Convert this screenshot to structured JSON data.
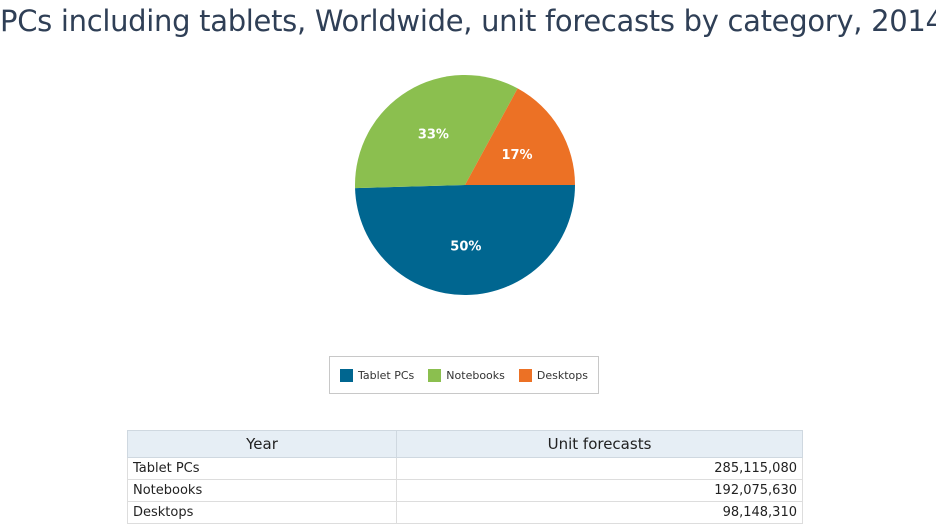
{
  "title": "PCs including tablets, Worldwide, unit forecasts by category, 2014",
  "chart_data": {
    "type": "pie",
    "title": "PCs including tablets, Worldwide, unit forecasts by category, 2014",
    "categories": [
      "Tablet PCs",
      "Notebooks",
      "Desktops"
    ],
    "values": [
      285115080,
      192075630,
      98148310
    ],
    "percent_labels": [
      "50%",
      "33%",
      "17%"
    ],
    "colors": [
      "#006690",
      "#8bbf4f",
      "#ec7125"
    ],
    "legend_placement": "bottom"
  },
  "legend": {
    "items": [
      {
        "label": "Tablet PCs",
        "color": "#006690"
      },
      {
        "label": "Notebooks",
        "color": "#8bbf4f"
      },
      {
        "label": "Desktops",
        "color": "#ec7125"
      }
    ]
  },
  "table": {
    "headers": [
      "Year",
      "Unit forecasts"
    ],
    "rows": [
      {
        "name": "Tablet PCs",
        "value": "285,115,080"
      },
      {
        "name": "Notebooks",
        "value": "192,075,630"
      },
      {
        "name": "Desktops",
        "value": "98,148,310"
      }
    ]
  }
}
